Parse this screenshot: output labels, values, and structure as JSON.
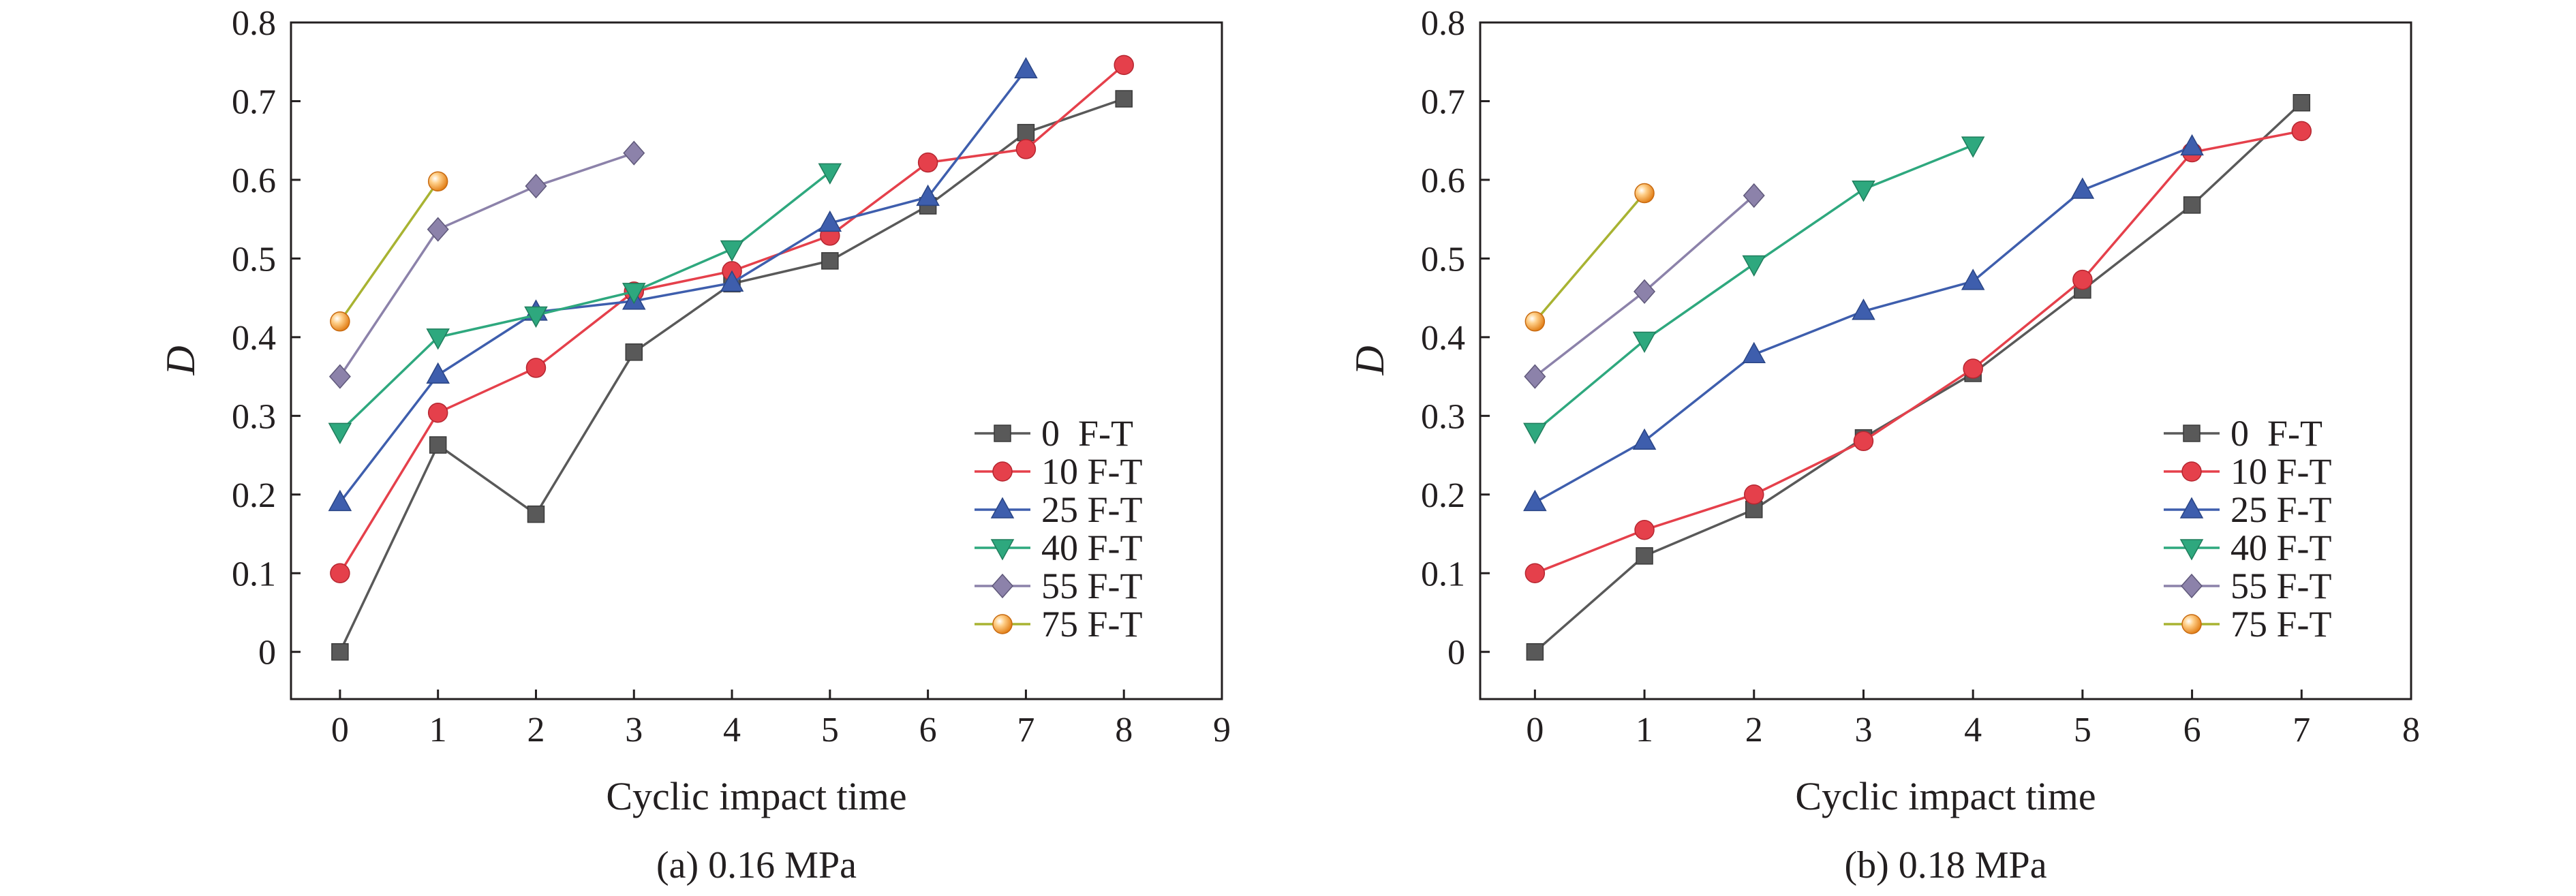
{
  "chart_data": [
    {
      "type": "line",
      "caption": "(a) 0.16 MPa",
      "xlabel": "Cyclic impact time",
      "ylabel": "D",
      "xlim": [
        -0.5,
        9
      ],
      "ylim": [
        -0.06,
        0.8
      ],
      "xticks": [
        0,
        1,
        2,
        3,
        4,
        5,
        6,
        7,
        8,
        9
      ],
      "yticks": [
        0,
        0.1,
        0.2,
        0.3,
        0.4,
        0.5,
        0.6,
        0.7,
        0.8
      ],
      "ytick_labels": [
        "0",
        "0.1",
        "0.2",
        "0.3",
        "0.4",
        "0.5",
        "0.6",
        "0.7",
        "0.8"
      ],
      "grid": false,
      "legend_position": "lower-right",
      "series": [
        {
          "name": "0  F-T",
          "marker": "square",
          "color": "#595959",
          "x": [
            0,
            1,
            2,
            3,
            4,
            5,
            6,
            7,
            8
          ],
          "y": [
            0,
            0.263,
            0.175,
            0.381,
            0.468,
            0.497,
            0.567,
            0.66,
            0.703
          ]
        },
        {
          "name": "10 F-T",
          "marker": "circle",
          "color": "#e5404b",
          "x": [
            0,
            1,
            2,
            3,
            4,
            5,
            6,
            7,
            8
          ],
          "y": [
            0.1,
            0.304,
            0.361,
            0.458,
            0.484,
            0.529,
            0.622,
            0.639,
            0.746
          ]
        },
        {
          "name": "25 F-T",
          "marker": "triangle-up",
          "color": "#3e5ead",
          "x": [
            0,
            1,
            2,
            3,
            4,
            5,
            6,
            7
          ],
          "y": [
            0.19,
            0.352,
            0.432,
            0.446,
            0.469,
            0.545,
            0.578,
            0.74
          ]
        },
        {
          "name": "40 F-T",
          "marker": "triangle-down",
          "color": "#2ea87e",
          "x": [
            0,
            1,
            2,
            3,
            4,
            5
          ],
          "y": [
            0.28,
            0.4,
            0.428,
            0.458,
            0.512,
            0.61
          ]
        },
        {
          "name": "55 F-T",
          "marker": "diamond",
          "color": "#8c82aa",
          "x": [
            0,
            1,
            2,
            3
          ],
          "y": [
            0.35,
            0.537,
            0.592,
            0.634
          ]
        },
        {
          "name": "75 F-T",
          "marker": "sphere",
          "color": "#f0922e",
          "line_color": "#a8b332",
          "x": [
            0,
            1
          ],
          "y": [
            0.42,
            0.598
          ]
        }
      ]
    },
    {
      "type": "line",
      "caption": "(b) 0.18 MPa",
      "xlabel": "Cyclic impact time",
      "ylabel": "D",
      "xlim": [
        -0.5,
        8
      ],
      "ylim": [
        -0.06,
        0.8
      ],
      "xticks": [
        0,
        1,
        2,
        3,
        4,
        5,
        6,
        7,
        8
      ],
      "yticks": [
        0,
        0.1,
        0.2,
        0.3,
        0.4,
        0.5,
        0.6,
        0.7,
        0.8
      ],
      "ytick_labels": [
        "0",
        "0.1",
        "0.2",
        "0.3",
        "0.4",
        "0.5",
        "0.6",
        "0.7",
        "0.8"
      ],
      "grid": false,
      "legend_position": "lower-right",
      "series": [
        {
          "name": "0  F-T",
          "marker": "square",
          "color": "#595959",
          "x": [
            0,
            1,
            2,
            3,
            4,
            5,
            6,
            7
          ],
          "y": [
            0,
            0.122,
            0.181,
            0.272,
            0.354,
            0.46,
            0.568,
            0.698
          ]
        },
        {
          "name": "10 F-T",
          "marker": "circle",
          "color": "#e5404b",
          "x": [
            0,
            1,
            2,
            3,
            4,
            5,
            6,
            7
          ],
          "y": [
            0.1,
            0.155,
            0.2,
            0.268,
            0.36,
            0.473,
            0.635,
            0.662
          ]
        },
        {
          "name": "25 F-T",
          "marker": "triangle-up",
          "color": "#3e5ead",
          "x": [
            0,
            1,
            2,
            3,
            4,
            5,
            6
          ],
          "y": [
            0.19,
            0.268,
            0.378,
            0.433,
            0.471,
            0.587,
            0.642
          ]
        },
        {
          "name": "40 F-T",
          "marker": "triangle-down",
          "color": "#2ea87e",
          "x": [
            0,
            1,
            2,
            3,
            4
          ],
          "y": [
            0.28,
            0.396,
            0.493,
            0.588,
            0.644
          ]
        },
        {
          "name": "55 F-T",
          "marker": "diamond",
          "color": "#8c82aa",
          "x": [
            0,
            1,
            2
          ],
          "y": [
            0.35,
            0.458,
            0.58
          ]
        },
        {
          "name": "75 F-T",
          "marker": "sphere",
          "color": "#f0922e",
          "line_color": "#a8b332",
          "x": [
            0,
            1
          ],
          "y": [
            0.42,
            0.583
          ]
        }
      ]
    }
  ]
}
